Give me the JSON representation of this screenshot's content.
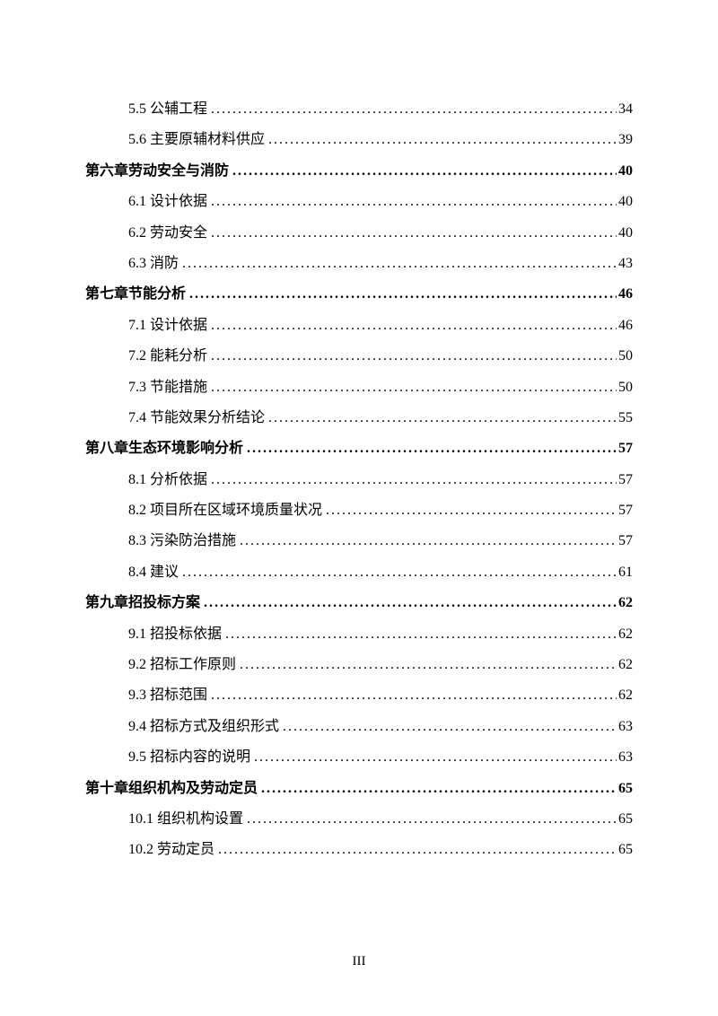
{
  "footer": {
    "page_number": "III"
  },
  "toc": [
    {
      "level": "section",
      "title": "5.5 公辅工程",
      "page": "34"
    },
    {
      "level": "section",
      "title": "5.6 主要原辅材料供应",
      "page": "39"
    },
    {
      "level": "chapter",
      "title": "第六章劳动安全与消防",
      "page": "40"
    },
    {
      "level": "section",
      "title": "6.1 设计依据",
      "page": "40"
    },
    {
      "level": "section",
      "title": "6.2 劳动安全",
      "page": "40"
    },
    {
      "level": "section",
      "title": "6.3 消防",
      "page": "43"
    },
    {
      "level": "chapter",
      "title": "第七章节能分析",
      "page": "46"
    },
    {
      "level": "section",
      "title": "7.1 设计依据",
      "page": "46"
    },
    {
      "level": "section",
      "title": "7.2 能耗分析",
      "page": "50"
    },
    {
      "level": "section",
      "title": "7.3 节能措施",
      "page": "50"
    },
    {
      "level": "section",
      "title": "7.4 节能效果分析结论",
      "page": "55"
    },
    {
      "level": "chapter",
      "title": "第八章生态环境影响分析",
      "page": "57"
    },
    {
      "level": "section",
      "title": "8.1 分析依据",
      "page": "57"
    },
    {
      "level": "section",
      "title": "8.2 项目所在区域环境质量状况",
      "page": "57"
    },
    {
      "level": "section",
      "title": "8.3 污染防治措施",
      "page": "57"
    },
    {
      "level": "section",
      "title": "8.4 建议",
      "page": "61"
    },
    {
      "level": "chapter",
      "title": "第九章招投标方案",
      "page": "62"
    },
    {
      "level": "section",
      "title": "9.1 招投标依据",
      "page": "62"
    },
    {
      "level": "section",
      "title": "9.2 招标工作原则",
      "page": "62"
    },
    {
      "level": "section",
      "title": "9.3 招标范围",
      "page": "62"
    },
    {
      "level": "section",
      "title": "9.4 招标方式及组织形式",
      "page": "63"
    },
    {
      "level": "section",
      "title": "9.5 招标内容的说明",
      "page": "63"
    },
    {
      "level": "chapter",
      "title": "第十章组织机构及劳动定员",
      "page": "65"
    },
    {
      "level": "section",
      "title": "10.1 组织机构设置",
      "page": "65"
    },
    {
      "level": "section",
      "title": "10.2 劳动定员",
      "page": "65"
    }
  ]
}
